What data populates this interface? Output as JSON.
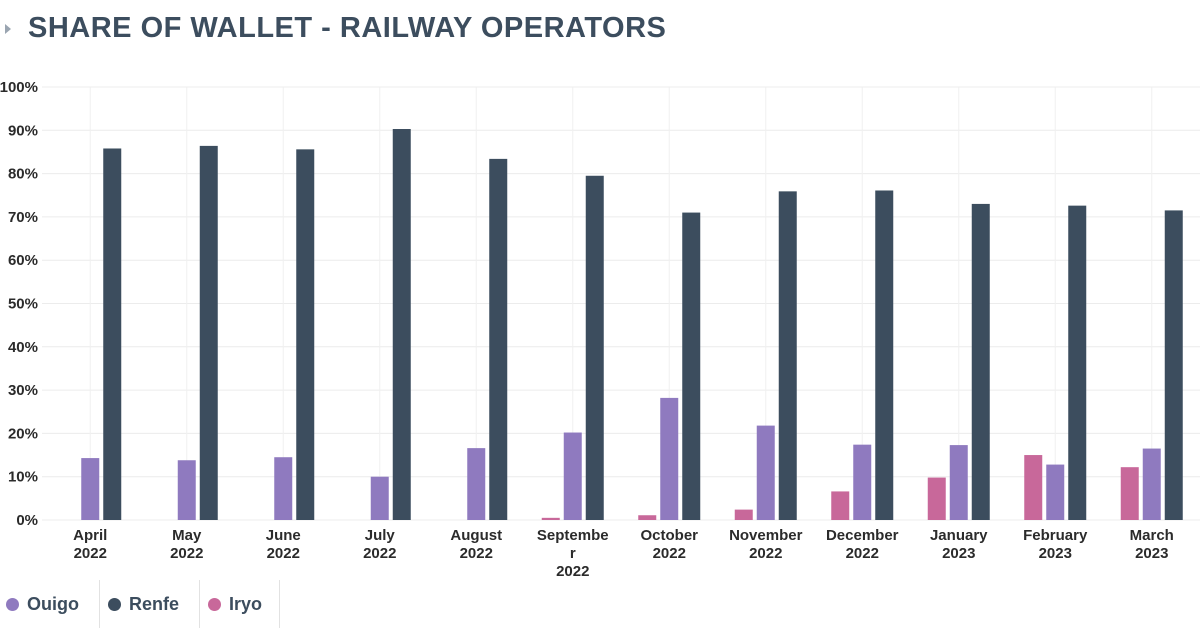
{
  "title": "SHARE OF WALLET - RAILWAY OPERATORS",
  "chart_data": {
    "type": "bar",
    "title": "SHARE OF WALLET - RAILWAY OPERATORS",
    "xlabel": "",
    "ylabel": "",
    "ylim": [
      0,
      100
    ],
    "yticks": [
      "0%",
      "10%",
      "20%",
      "30%",
      "40%",
      "50%",
      "60%",
      "70%",
      "80%",
      "90%",
      "100%"
    ],
    "categories": [
      [
        "April",
        "2022"
      ],
      [
        "May",
        "2022"
      ],
      [
        "June",
        "2022"
      ],
      [
        "July",
        "2022"
      ],
      [
        "August",
        "2022"
      ],
      [
        "Septembe",
        "r",
        "2022"
      ],
      [
        "October",
        "2022"
      ],
      [
        "November",
        "2022"
      ],
      [
        "December",
        "2022"
      ],
      [
        "January",
        "2023"
      ],
      [
        "February",
        "2023"
      ],
      [
        "March",
        "2023"
      ]
    ],
    "series": [
      {
        "name": "Iryo",
        "color": "#c8689a",
        "values": [
          0,
          0,
          0,
          0,
          0,
          0.5,
          1.1,
          2.4,
          6.6,
          9.8,
          15,
          12.2
        ]
      },
      {
        "name": "Ouigo",
        "color": "#8f7abf",
        "values": [
          14.3,
          13.8,
          14.5,
          10,
          16.6,
          20.2,
          28.2,
          21.8,
          17.4,
          17.3,
          12.8,
          16.5
        ]
      },
      {
        "name": "Renfe",
        "color": "#3c4d5e",
        "values": [
          85.8,
          86.4,
          85.6,
          90.3,
          83.4,
          79.5,
          71,
          75.9,
          76.1,
          73,
          72.6,
          71.5
        ]
      }
    ],
    "grid": true,
    "legend_position": "bottom-left"
  },
  "legend": [
    {
      "name": "Ouigo",
      "color": "#8f7abf"
    },
    {
      "name": "Renfe",
      "color": "#3c4d5e"
    },
    {
      "name": "Iryo",
      "color": "#c8689a"
    }
  ]
}
